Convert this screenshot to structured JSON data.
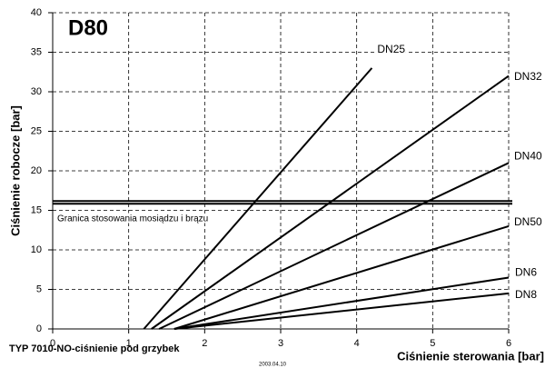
{
  "chart_data": {
    "type": "line",
    "title": "D80",
    "subtitle": "TYP 7010-NO-ciśnienie pod grzybek",
    "date": "2003.04.10",
    "x_label": "Ciśnienie sterowania [bar]",
    "y_label": "Ciśnienie robocze [bar]",
    "xlim": [
      0,
      6
    ],
    "xticks": [
      0,
      1,
      2,
      3,
      4,
      5,
      6
    ],
    "ylim": [
      0,
      40
    ],
    "yticks": [
      0,
      5,
      10,
      15,
      20,
      25,
      30,
      35,
      40
    ],
    "grid": true,
    "reference_line": {
      "value": 16,
      "label": "Granica stosowania mosiądzu i brązu"
    },
    "series": [
      {
        "name": "DN25",
        "color": "#000000",
        "x": [
          1.2,
          4.2
        ],
        "values": [
          0,
          33
        ]
      },
      {
        "name": "DN32",
        "color": "#000000",
        "x": [
          1.3,
          6
        ],
        "values": [
          0,
          32
        ]
      },
      {
        "name": "DN40",
        "color": "#000000",
        "x": [
          1.4,
          6
        ],
        "values": [
          0,
          21
        ]
      },
      {
        "name": "DN50",
        "color": "#000000",
        "x": [
          1.6,
          6
        ],
        "values": [
          0,
          13
        ]
      },
      {
        "name": "DN6",
        "color": "#000000",
        "x": [
          1.6,
          6
        ],
        "values": [
          0,
          6.5
        ]
      },
      {
        "name": "DN8",
        "color": "#000000",
        "x": [
          1.6,
          6
        ],
        "values": [
          0,
          4.5
        ]
      }
    ]
  }
}
